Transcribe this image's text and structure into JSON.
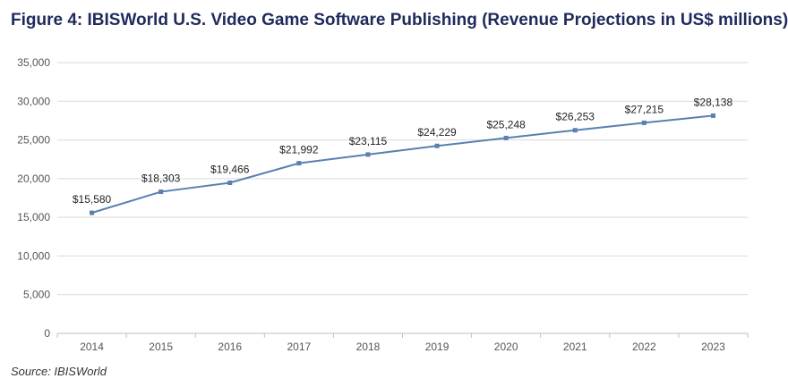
{
  "title": "Figure 4: IBISWorld U.S. Video Game Software Publishing (Revenue Projections in US$ millions)",
  "source": "Source: IBISWorld",
  "colors": {
    "title": "#1f2a5c",
    "line": "#5a7fb0",
    "grid": "#d9d9d9"
  },
  "chart_data": {
    "type": "line",
    "title": "Figure 4: IBISWorld U.S. Video Game Software Publishing (Revenue Projections in US$ millions)",
    "xlabel": "",
    "ylabel": "",
    "ylim": [
      0,
      35000
    ],
    "yticks": [
      "0",
      "5,000",
      "10,000",
      "15,000",
      "20,000",
      "25,000",
      "30,000",
      "35,000"
    ],
    "grid": true,
    "legend": "none",
    "categories": [
      "2014",
      "2015",
      "2016",
      "2017",
      "2018",
      "2019",
      "2020",
      "2021",
      "2022",
      "2023"
    ],
    "series": [
      {
        "values": [
          15580,
          18303,
          19466,
          21992,
          23115,
          24229,
          25248,
          26253,
          27215,
          28138
        ],
        "labels": [
          "$15,580",
          "$18,303",
          "$19,466",
          "$21,992",
          "$23,115",
          "$24,229",
          "$25,248",
          "$26,253",
          "$27,215",
          "$28,138"
        ]
      }
    ]
  }
}
